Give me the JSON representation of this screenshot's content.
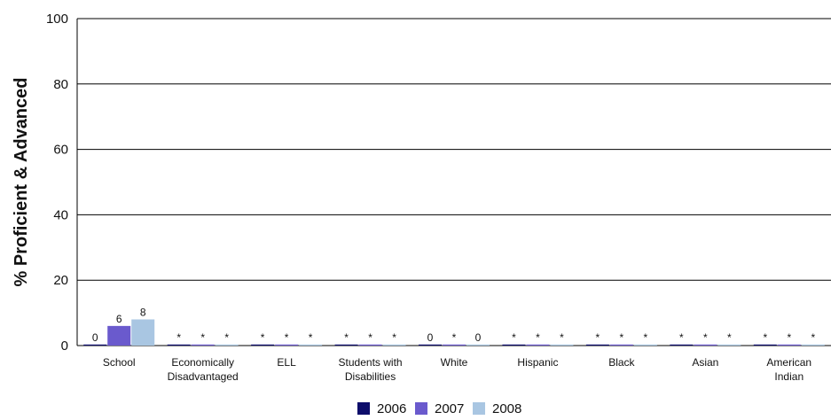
{
  "chart_data": {
    "type": "bar",
    "title": "",
    "xlabel": "",
    "ylabel": "% Proficient & Advanced",
    "ylim": [
      0,
      100
    ],
    "yticks": [
      0,
      20,
      40,
      60,
      80,
      100
    ],
    "grid": true,
    "legend_position": "bottom",
    "categories": [
      [
        "School"
      ],
      [
        "Economically",
        "Disadvantaged"
      ],
      [
        "ELL"
      ],
      [
        "Students with",
        "Disabilities"
      ],
      [
        "White"
      ],
      [
        "Hispanic"
      ],
      [
        "Black"
      ],
      [
        "Asian"
      ],
      [
        "American",
        "Indian"
      ]
    ],
    "series": [
      {
        "name": "2006",
        "color": "#0d0d6b",
        "values": [
          0,
          null,
          null,
          null,
          0,
          null,
          null,
          null,
          null
        ],
        "labels": [
          "0",
          "*",
          "*",
          "*",
          "0",
          "*",
          "*",
          "*",
          "*"
        ]
      },
      {
        "name": "2007",
        "color": "#6a5acd",
        "values": [
          6,
          null,
          null,
          null,
          null,
          null,
          null,
          null,
          null
        ],
        "labels": [
          "6",
          "*",
          "*",
          "*",
          "*",
          "*",
          "*",
          "*",
          "*"
        ]
      },
      {
        "name": "2008",
        "color": "#a9c6e2",
        "values": [
          8,
          null,
          null,
          null,
          0,
          null,
          null,
          null,
          null
        ],
        "labels": [
          "8",
          "*",
          "*",
          "*",
          "0",
          "*",
          "*",
          "*",
          "*"
        ]
      }
    ]
  }
}
